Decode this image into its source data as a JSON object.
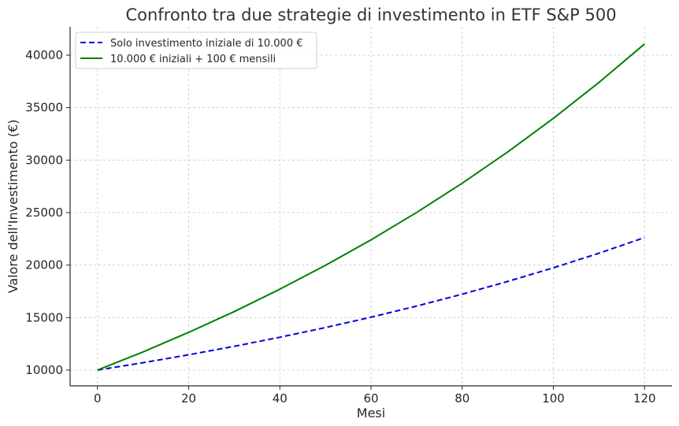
{
  "chart_data": {
    "type": "line",
    "title": "Confronto tra due strategie di investimento in ETF S&P 500",
    "xlabel": "Mesi",
    "ylabel": "Valore dell'Investimento (€)",
    "xlim": [
      -6,
      126
    ],
    "ylim": [
      8500,
      42700
    ],
    "xticks": [
      0,
      20,
      40,
      60,
      80,
      100,
      120
    ],
    "yticks": [
      10000,
      15000,
      20000,
      25000,
      30000,
      35000,
      40000
    ],
    "grid": true,
    "legend_position": "top-left",
    "series": [
      {
        "name": "Solo investimento iniziale di 10.000 €",
        "color": "#0000dd",
        "style": "dashed",
        "x": [
          0,
          10,
          20,
          30,
          40,
          50,
          60,
          70,
          80,
          90,
          100,
          110,
          120
        ],
        "y": [
          10000,
          10704,
          11457,
          12264,
          13127,
          14051,
          15040,
          16099,
          17232,
          18445,
          19743,
          21133,
          22620
        ]
      },
      {
        "name": "10.000 € iniziali + 100 € mensili",
        "color": "#008000",
        "style": "solid",
        "x": [
          0,
          10,
          20,
          30,
          40,
          50,
          60,
          70,
          80,
          90,
          100,
          110,
          120
        ],
        "y": [
          10000,
          11732,
          13589,
          15575,
          17700,
          19973,
          22407,
          25012,
          27800,
          30786,
          33981,
          37401,
          41062
        ]
      }
    ]
  }
}
